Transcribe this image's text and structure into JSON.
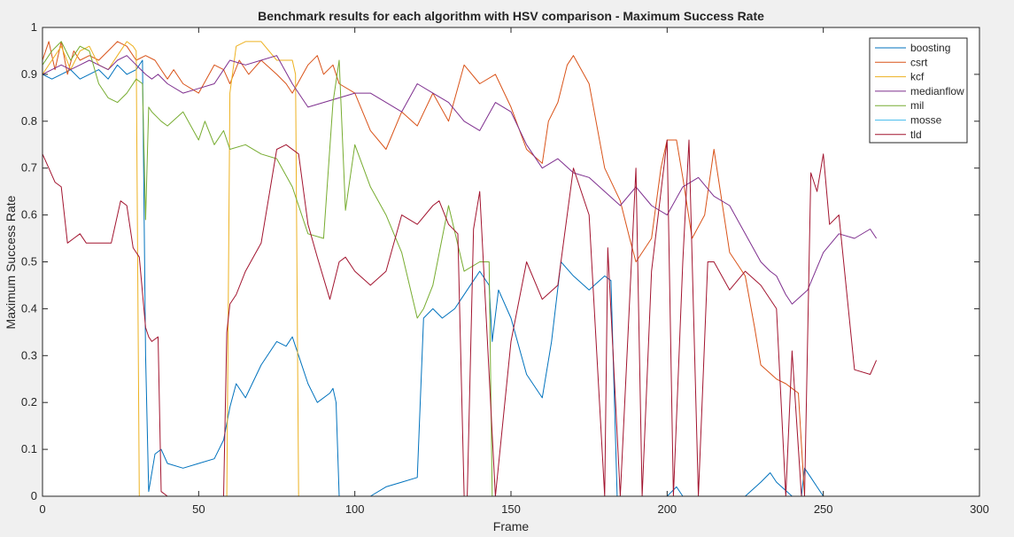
{
  "chart_data": {
    "type": "line",
    "title": "Benchmark results for each algorithm with HSV comparison - Maximum Success Rate",
    "xlabel": "Frame",
    "ylabel": "Maximum Success Rate",
    "xlim": [
      0,
      300
    ],
    "ylim": [
      0,
      1
    ],
    "xticks": [
      0,
      50,
      100,
      150,
      200,
      250,
      300
    ],
    "yticks": [
      0,
      0.1,
      0.2,
      0.3,
      0.4,
      0.5,
      0.6,
      0.7,
      0.8,
      0.9,
      1
    ],
    "ytick_labels": [
      "0",
      "0.1",
      "0.2",
      "0.3",
      "0.4",
      "0.5",
      "0.6",
      "0.7",
      "0.8",
      "0.9",
      "1"
    ],
    "grid": false,
    "legend_position": "top-right",
    "series": [
      {
        "name": "boosting",
        "color": "#0072BD",
        "x": [
          0,
          3,
          6,
          9,
          12,
          15,
          18,
          21,
          24,
          27,
          30,
          32,
          33,
          34,
          36,
          38,
          40,
          45,
          50,
          55,
          58,
          60,
          62,
          65,
          70,
          75,
          78,
          80,
          82,
          85,
          88,
          92,
          93,
          94,
          95,
          100,
          105,
          110,
          115,
          120,
          122,
          125,
          128,
          132,
          136,
          140,
          143,
          144,
          146,
          150,
          155,
          160,
          163,
          166,
          170,
          175,
          180,
          182,
          184,
          185,
          200,
          203,
          205,
          210,
          225,
          230,
          233,
          235,
          240,
          243,
          244,
          246,
          248,
          250,
          267
        ],
        "y": [
          0.9,
          0.89,
          0.9,
          0.91,
          0.89,
          0.9,
          0.91,
          0.89,
          0.92,
          0.9,
          0.91,
          0.93,
          0.3,
          0.01,
          0.09,
          0.1,
          0.07,
          0.06,
          0.07,
          0.08,
          0.12,
          0.19,
          0.24,
          0.21,
          0.28,
          0.33,
          0.32,
          0.34,
          0.3,
          0.24,
          0.2,
          0.22,
          0.23,
          0.2,
          0.0,
          0.0,
          0.0,
          0.02,
          0.03,
          0.04,
          0.38,
          0.4,
          0.38,
          0.4,
          0.44,
          0.48,
          0.45,
          0.33,
          0.44,
          0.38,
          0.26,
          0.21,
          0.33,
          0.5,
          0.47,
          0.44,
          0.47,
          0.46,
          0.0,
          0.0,
          0.0,
          0.02,
          0.0,
          0.0,
          0.0,
          0.03,
          0.05,
          0.03,
          0.0,
          0.0,
          0.06,
          0.04,
          0.02,
          0.0,
          0.0
        ]
      },
      {
        "name": "csrt",
        "color": "#D95319",
        "x": [
          0,
          2,
          4,
          6,
          8,
          10,
          12,
          15,
          18,
          21,
          24,
          27,
          30,
          33,
          36,
          38,
          40,
          42,
          45,
          50,
          55,
          58,
          60,
          63,
          66,
          70,
          75,
          78,
          80,
          85,
          88,
          90,
          93,
          95,
          100,
          105,
          110,
          115,
          120,
          125,
          130,
          135,
          140,
          145,
          150,
          155,
          160,
          162,
          165,
          168,
          170,
          175,
          180,
          185,
          188,
          190,
          195,
          198,
          200,
          203,
          205,
          208,
          212,
          215,
          220,
          225,
          228,
          230,
          235,
          238,
          240,
          242,
          244
        ],
        "y": [
          0.93,
          0.97,
          0.91,
          0.97,
          0.9,
          0.95,
          0.93,
          0.94,
          0.93,
          0.95,
          0.97,
          0.96,
          0.93,
          0.94,
          0.93,
          0.91,
          0.89,
          0.91,
          0.88,
          0.86,
          0.92,
          0.91,
          0.88,
          0.93,
          0.9,
          0.93,
          0.9,
          0.88,
          0.86,
          0.92,
          0.94,
          0.9,
          0.92,
          0.88,
          0.86,
          0.78,
          0.74,
          0.82,
          0.79,
          0.86,
          0.8,
          0.92,
          0.88,
          0.9,
          0.83,
          0.74,
          0.71,
          0.8,
          0.84,
          0.92,
          0.94,
          0.88,
          0.7,
          0.63,
          0.55,
          0.5,
          0.55,
          0.7,
          0.76,
          0.76,
          0.68,
          0.55,
          0.6,
          0.74,
          0.52,
          0.47,
          0.36,
          0.28,
          0.25,
          0.24,
          0.23,
          0.22,
          0.0
        ]
      },
      {
        "name": "kcf",
        "color": "#EDB120",
        "x": [
          0,
          3,
          6,
          9,
          12,
          15,
          18,
          21,
          24,
          27,
          29,
          30,
          31,
          59,
          60,
          62,
          65,
          70,
          75,
          80,
          81,
          82
        ],
        "y": [
          0.9,
          0.93,
          0.96,
          0.91,
          0.95,
          0.96,
          0.92,
          0.91,
          0.94,
          0.97,
          0.96,
          0.95,
          0.0,
          0.0,
          0.86,
          0.96,
          0.97,
          0.97,
          0.93,
          0.93,
          0.9,
          0.0
        ]
      },
      {
        "name": "medianflow",
        "color": "#7E2F8E",
        "x": [
          0,
          3,
          6,
          9,
          12,
          15,
          18,
          21,
          24,
          27,
          30,
          33,
          35,
          37,
          40,
          45,
          50,
          55,
          60,
          65,
          70,
          75,
          80,
          85,
          90,
          95,
          100,
          105,
          110,
          115,
          120,
          125,
          130,
          135,
          140,
          145,
          150,
          155,
          160,
          165,
          170,
          175,
          180,
          185,
          190,
          195,
          200,
          205,
          210,
          215,
          220,
          225,
          230,
          233,
          235,
          238,
          240,
          245,
          250,
          255,
          260,
          265,
          267
        ],
        "y": [
          0.9,
          0.91,
          0.92,
          0.91,
          0.92,
          0.93,
          0.92,
          0.91,
          0.93,
          0.94,
          0.92,
          0.9,
          0.89,
          0.9,
          0.88,
          0.86,
          0.87,
          0.88,
          0.93,
          0.92,
          0.93,
          0.94,
          0.88,
          0.83,
          0.84,
          0.85,
          0.86,
          0.86,
          0.84,
          0.82,
          0.88,
          0.86,
          0.84,
          0.8,
          0.78,
          0.84,
          0.82,
          0.75,
          0.7,
          0.72,
          0.69,
          0.68,
          0.65,
          0.62,
          0.66,
          0.62,
          0.6,
          0.66,
          0.68,
          0.64,
          0.62,
          0.56,
          0.5,
          0.48,
          0.47,
          0.43,
          0.41,
          0.44,
          0.52,
          0.56,
          0.55,
          0.57,
          0.55
        ]
      },
      {
        "name": "mil",
        "color": "#77AC30",
        "x": [
          0,
          3,
          6,
          9,
          12,
          15,
          18,
          21,
          24,
          27,
          30,
          32,
          33,
          34,
          35,
          38,
          40,
          45,
          50,
          52,
          55,
          58,
          60,
          65,
          70,
          75,
          80,
          85,
          90,
          93,
          95,
          97,
          100,
          105,
          110,
          115,
          120,
          122,
          125,
          130,
          135,
          140,
          143,
          144,
          145,
          146,
          147
        ],
        "y": [
          0.92,
          0.95,
          0.97,
          0.93,
          0.96,
          0.95,
          0.88,
          0.85,
          0.84,
          0.86,
          0.89,
          0.88,
          0.59,
          0.83,
          0.82,
          0.8,
          0.79,
          0.82,
          0.76,
          0.8,
          0.75,
          0.78,
          0.74,
          0.75,
          0.73,
          0.72,
          0.66,
          0.56,
          0.55,
          0.84,
          0.93,
          0.61,
          0.75,
          0.66,
          0.6,
          0.52,
          0.38,
          0.4,
          0.45,
          0.62,
          0.48,
          0.5,
          0.5,
          0.0,
          0.0,
          0.0,
          0.0
        ]
      },
      {
        "name": "mosse",
        "color": "#4DBEEE",
        "x": [
          0,
          267
        ],
        "y": [
          0.0,
          0.0
        ]
      },
      {
        "name": "tld",
        "color": "#A2142F",
        "x": [
          0,
          2,
          4,
          6,
          8,
          10,
          12,
          14,
          18,
          22,
          25,
          27,
          29,
          30,
          31,
          33,
          34,
          35,
          37,
          38,
          40,
          50,
          58,
          59,
          60,
          62,
          65,
          70,
          75,
          78,
          82,
          85,
          88,
          92,
          95,
          97,
          100,
          105,
          110,
          115,
          120,
          125,
          127,
          130,
          133,
          135,
          136,
          138,
          140,
          145,
          150,
          155,
          160,
          165,
          170,
          175,
          180,
          181,
          185,
          190,
          192,
          195,
          200,
          202,
          205,
          207,
          210,
          213,
          215,
          220,
          225,
          230,
          235,
          238,
          240,
          243,
          244,
          246,
          248,
          250,
          252,
          255,
          260,
          265,
          267
        ],
        "y": [
          0.73,
          0.7,
          0.67,
          0.66,
          0.54,
          0.55,
          0.56,
          0.54,
          0.54,
          0.54,
          0.63,
          0.62,
          0.53,
          0.52,
          0.51,
          0.36,
          0.34,
          0.33,
          0.34,
          0.01,
          0.0,
          0.0,
          0.0,
          0.35,
          0.41,
          0.43,
          0.48,
          0.54,
          0.74,
          0.75,
          0.73,
          0.58,
          0.51,
          0.42,
          0.5,
          0.51,
          0.48,
          0.45,
          0.48,
          0.6,
          0.58,
          0.62,
          0.63,
          0.58,
          0.56,
          0.0,
          0.0,
          0.57,
          0.65,
          0.0,
          0.33,
          0.5,
          0.42,
          0.45,
          0.7,
          0.6,
          0.0,
          0.53,
          0.0,
          0.7,
          0.0,
          0.48,
          0.76,
          0.0,
          0.5,
          0.76,
          0.0,
          0.5,
          0.5,
          0.44,
          0.48,
          0.45,
          0.4,
          0.0,
          0.31,
          0.0,
          0.0,
          0.69,
          0.65,
          0.73,
          0.58,
          0.6,
          0.27,
          0.26,
          0.29
        ]
      }
    ]
  }
}
